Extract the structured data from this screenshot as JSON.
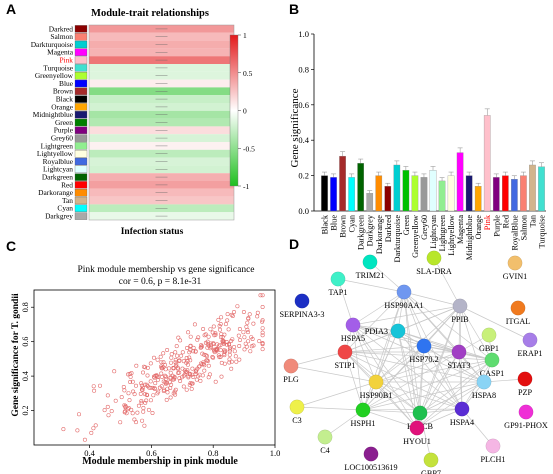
{
  "panels": {
    "a": {
      "letter": "A"
    },
    "b": {
      "letter": "B"
    },
    "c": {
      "letter": "C"
    },
    "d": {
      "letter": "D"
    }
  },
  "chart_data": [
    {
      "type": "heatmap",
      "panel": "A",
      "title": "Module-trait relationships",
      "xlabel": "Infection status",
      "highlight_row": "Pink",
      "highlight_color": "#ff0000",
      "rows": [
        {
          "name": "Darkred",
          "color": "#8b0000",
          "corr": 0.45
        },
        {
          "name": "Salmon",
          "color": "#fa8072",
          "corr": 0.3
        },
        {
          "name": "Darkturquoise",
          "color": "#00ced1",
          "corr": 0.36
        },
        {
          "name": "Magenta",
          "color": "#ff00ff",
          "corr": 0.33
        },
        {
          "name": "Pink",
          "color": "#ffc0cb",
          "corr": 0.6
        },
        {
          "name": "Turquoise",
          "color": "#40e0d0",
          "corr": -0.15
        },
        {
          "name": "Greenyellow",
          "color": "#adff2f",
          "corr": -0.15
        },
        {
          "name": "Blue",
          "color": "#0000ff",
          "corr": 0.08
        },
        {
          "name": "Brown",
          "color": "#a52a2a",
          "corr": -0.55
        },
        {
          "name": "Black",
          "color": "#000000",
          "corr": -0.25
        },
        {
          "name": "Orange",
          "color": "#ffa500",
          "corr": -0.2
        },
        {
          "name": "Midnightblue",
          "color": "#191970",
          "corr": -0.4
        },
        {
          "name": "Green",
          "color": "#008000",
          "corr": -0.35
        },
        {
          "name": "Purple",
          "color": "#800080",
          "corr": 0.15
        },
        {
          "name": "Grey60",
          "color": "#999999",
          "corr": -0.18
        },
        {
          "name": "Lightgreen",
          "color": "#90ee90",
          "corr": 0.06
        },
        {
          "name": "Lightyellow",
          "color": "#ffffe0",
          "corr": -0.3
        },
        {
          "name": "Royalblue",
          "color": "#4169e1",
          "corr": -0.18
        },
        {
          "name": "Lightcyan",
          "color": "#e0ffff",
          "corr": -0.2
        },
        {
          "name": "Darkgreen",
          "color": "#006400",
          "corr": 0.35
        },
        {
          "name": "Red",
          "color": "#ff0000",
          "corr": 0.42
        },
        {
          "name": "Darkorange",
          "color": "#ff8c00",
          "corr": 0.3
        },
        {
          "name": "Tan",
          "color": "#d2b48c",
          "corr": 0.25
        },
        {
          "name": "Cyan",
          "color": "#00ffff",
          "corr": -0.3
        },
        {
          "name": "Darkgrey",
          "color": "#a9a9a9",
          "corr": -0.1
        }
      ],
      "colorbar": {
        "max": 1,
        "min": -1,
        "ticks": [
          "1",
          "0.5",
          "0",
          "-0.5",
          "-1"
        ],
        "high_color": "#e31a1c",
        "mid_color": "#ffffff",
        "low_color": "#1fbf1f"
      }
    },
    {
      "type": "bar",
      "panel": "B",
      "ylabel": "Gene significance",
      "ylim": [
        0,
        1.0
      ],
      "yticks": [
        "0.0",
        "0.2",
        "0.4",
        "0.6",
        "0.8",
        "1.0"
      ],
      "highlight_category": "Pink",
      "highlight_color": "#ff0000",
      "categories": [
        "Black",
        "Blue",
        "Brown",
        "Cyan",
        "Darkgreen",
        "Darkgrey",
        "Darkorange",
        "Darkred",
        "Darkturquoise",
        "Green",
        "Greenyellow",
        "Grey60",
        "Lightcyan",
        "Lightgreen",
        "Lightyellow",
        "Magenta",
        "Midnightblue",
        "Orange",
        "Pink",
        "Purple",
        "Red",
        "RoyalBlue",
        "Salmon",
        "Tan",
        "Turquoise"
      ],
      "values": [
        0.2,
        0.19,
        0.31,
        0.19,
        0.27,
        0.1,
        0.2,
        0.14,
        0.26,
        0.23,
        0.2,
        0.19,
        0.23,
        0.17,
        0.2,
        0.33,
        0.2,
        0.14,
        0.54,
        0.19,
        0.2,
        0.18,
        0.2,
        0.26,
        0.25
      ],
      "colors": [
        "#000000",
        "#0000ff",
        "#a52a2a",
        "#00ffff",
        "#006400",
        "#a9a9a9",
        "#ff8c00",
        "#8b0000",
        "#00ced1",
        "#00c000",
        "#adff2f",
        "#999999",
        "#e0ffff",
        "#90ee90",
        "#ffffe0",
        "#ff00ff",
        "#191970",
        "#ffa500",
        "#ffc0cb",
        "#800080",
        "#ff0000",
        "#4169e1",
        "#fa8072",
        "#d2b48c",
        "#40e0d0"
      ]
    },
    {
      "type": "scatter",
      "panel": "C",
      "title": "Pink module membership vs gene significance",
      "subtitle": "cor = 0.6, p = 8.1e-31",
      "xlabel": "Module membership in pink module",
      "ylabel": "Gene significance for T. gondii",
      "xlim": [
        0.22,
        1.0
      ],
      "ylim": [
        0.0,
        0.9
      ],
      "xticks": [
        "0.4",
        "0.6",
        "0.8",
        "1.0"
      ],
      "yticks": [
        "0.2",
        "0.4",
        "0.6",
        "0.8"
      ],
      "point_color": "#e36a6a",
      "n_points": 370,
      "fit": {
        "intercept": -0.25,
        "slope": 1.0
      },
      "spread": 0.12
    },
    {
      "type": "network",
      "panel": "D",
      "nodes": [
        {
          "name": "TRIM21",
          "color": "#00e5c0"
        },
        {
          "name": "SLA-DRA",
          "color": "#b8e62a"
        },
        {
          "name": "TAP1",
          "color": "#3ff0c8"
        },
        {
          "name": "GVIN1",
          "color": "#f2bf6c"
        },
        {
          "name": "SERPINA3-3",
          "color": "#1c2fc4"
        },
        {
          "name": "HSP90AA1",
          "color": "#6f97f0"
        },
        {
          "name": "ITGAL",
          "color": "#f07a1f"
        },
        {
          "name": "HSPA5",
          "color": "#a35ee8"
        },
        {
          "name": "PPIB",
          "color": "#b4b4c8"
        },
        {
          "name": "GBP1",
          "color": "#c8f07a"
        },
        {
          "name": "ERAP1",
          "color": "#a77ee8"
        },
        {
          "name": "PDIA3",
          "color": "#16c4d8"
        },
        {
          "name": "STAT3",
          "color": "#a13fc4"
        },
        {
          "name": "CASP1",
          "color": "#5fdc70"
        },
        {
          "name": "PLG",
          "color": "#f08a7a"
        },
        {
          "name": "STIP1",
          "color": "#ef4747"
        },
        {
          "name": "HSP70.2",
          "color": "#2f74f0"
        },
        {
          "name": "HSP90B1",
          "color": "#f2d23c"
        },
        {
          "name": "HSPA8",
          "color": "#8ad4f5"
        },
        {
          "name": "PZP",
          "color": "#e30f0f"
        },
        {
          "name": "C3",
          "color": "#eef04a"
        },
        {
          "name": "HSPH1",
          "color": "#22d022"
        },
        {
          "name": "HSPCB",
          "color": "#1fc04f"
        },
        {
          "name": "HSPA4",
          "color": "#5a2cd4"
        },
        {
          "name": "GP91-PHOX",
          "color": "#ef2fd6"
        },
        {
          "name": "HYOU1",
          "color": "#e0117a"
        },
        {
          "name": "C4",
          "color": "#c3ee8f"
        },
        {
          "name": "PLCH1",
          "color": "#f5b6e4"
        },
        {
          "name": "LOC100513619",
          "color": "#8a1f8f"
        },
        {
          "name": "GBP7",
          "color": "#c4e23c"
        }
      ],
      "edge_color": "#c9c9c9"
    }
  ]
}
